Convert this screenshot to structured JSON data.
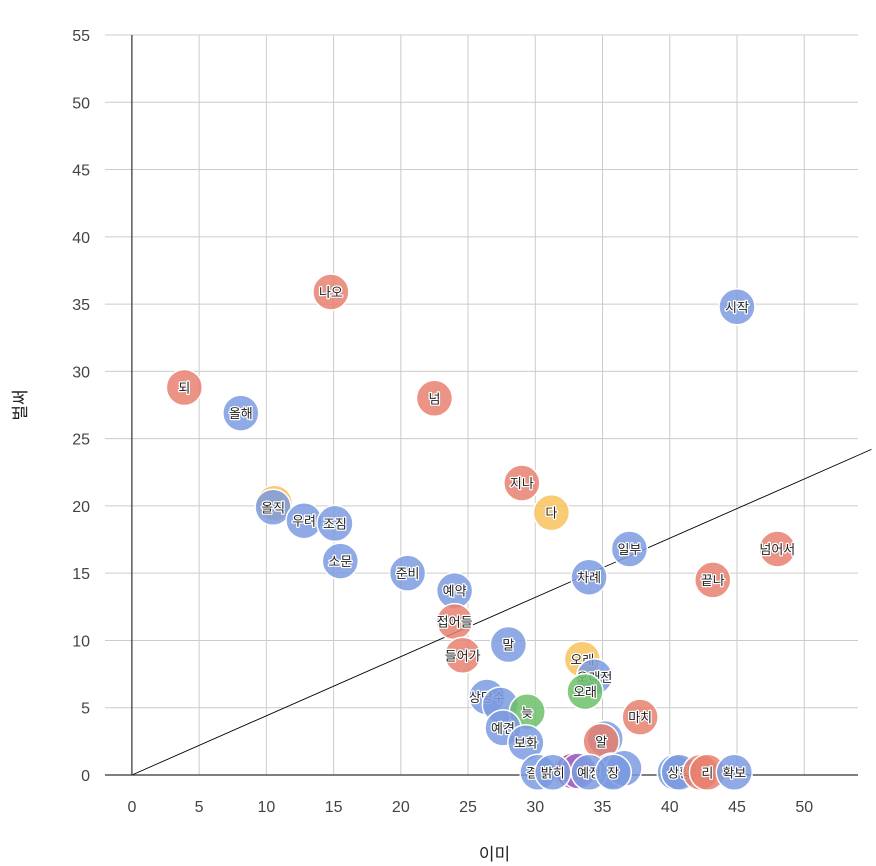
{
  "chart_data": {
    "type": "scatter",
    "title": "",
    "xlabel": "이미",
    "ylabel": "벌써",
    "xlim": [
      -2,
      54
    ],
    "ylim": [
      0,
      55
    ],
    "xticks": [
      0,
      5,
      10,
      15,
      20,
      25,
      30,
      35,
      40,
      45,
      50
    ],
    "yticks": [
      0,
      5,
      10,
      15,
      20,
      25,
      30,
      35,
      40,
      45,
      50,
      55
    ],
    "grid": true,
    "reference_line": {
      "from": [
        0,
        0
      ],
      "to": [
        55,
        24.2
      ]
    },
    "colors": {
      "blue": "#7b9be0",
      "red": "#e8806e",
      "yellow": "#f7c25c",
      "green": "#6dbf6a",
      "purple": "#9b6fcf",
      "magenta": "#c9507e"
    },
    "points": [
      {
        "label": "시작",
        "x": 45.0,
        "y": 34.8,
        "color": "blue"
      },
      {
        "label": "나오",
        "x": 14.8,
        "y": 35.9,
        "color": "red"
      },
      {
        "label": "되",
        "x": 3.9,
        "y": 28.8,
        "color": "red"
      },
      {
        "label": "넘",
        "x": 22.5,
        "y": 28.0,
        "color": "red"
      },
      {
        "label": "올해",
        "x": 8.1,
        "y": 26.9,
        "color": "blue"
      },
      {
        "label": "지나",
        "x": 29.0,
        "y": 21.7,
        "color": "red"
      },
      {
        "label": "다",
        "x": 31.2,
        "y": 19.5,
        "color": "yellow"
      },
      {
        "label": "",
        "x": 10.6,
        "y": 20.2,
        "color": "yellow"
      },
      {
        "label": "올직",
        "x": 10.5,
        "y": 19.9,
        "color": "blue"
      },
      {
        "label": "우려",
        "x": 12.8,
        "y": 18.9,
        "color": "blue"
      },
      {
        "label": "조짐",
        "x": 15.1,
        "y": 18.7,
        "color": "blue"
      },
      {
        "label": "일부",
        "x": 37.0,
        "y": 16.8,
        "color": "blue"
      },
      {
        "label": "넘어서",
        "x": 48.0,
        "y": 16.8,
        "color": "red"
      },
      {
        "label": "소문",
        "x": 15.5,
        "y": 15.9,
        "color": "blue"
      },
      {
        "label": "준비",
        "x": 20.5,
        "y": 15.0,
        "color": "blue"
      },
      {
        "label": "차례",
        "x": 34.0,
        "y": 14.7,
        "color": "blue"
      },
      {
        "label": "끝나",
        "x": 43.2,
        "y": 14.5,
        "color": "red"
      },
      {
        "label": "예약",
        "x": 24.0,
        "y": 13.7,
        "color": "blue"
      },
      {
        "label": "접어들",
        "x": 24.0,
        "y": 11.4,
        "color": "red"
      },
      {
        "label": "말",
        "x": 28.0,
        "y": 9.7,
        "color": "blue"
      },
      {
        "label": "들어가",
        "x": 24.6,
        "y": 8.9,
        "color": "red"
      },
      {
        "label": "오래",
        "x": 33.5,
        "y": 8.6,
        "color": "yellow"
      },
      {
        "label": "오래전",
        "x": 34.4,
        "y": 7.3,
        "color": "blue"
      },
      {
        "label": "오래",
        "x": 33.7,
        "y": 6.2,
        "color": "green"
      },
      {
        "label": "상당수",
        "x": 26.4,
        "y": 5.8,
        "color": "blue"
      },
      {
        "label": "",
        "x": 27.4,
        "y": 5.2,
        "color": "blue"
      },
      {
        "label": "늦",
        "x": 29.4,
        "y": 4.7,
        "color": "green"
      },
      {
        "label": "마치",
        "x": 37.8,
        "y": 4.3,
        "color": "red"
      },
      {
        "label": "예견",
        "x": 27.6,
        "y": 3.5,
        "color": "blue"
      },
      {
        "label": "보화",
        "x": 29.3,
        "y": 2.4,
        "color": "blue"
      },
      {
        "label": "",
        "x": 35.2,
        "y": 2.7,
        "color": "blue"
      },
      {
        "label": "알",
        "x": 34.9,
        "y": 2.5,
        "color": "red"
      },
      {
        "label": "",
        "x": 32.6,
        "y": 0.3,
        "color": "red"
      },
      {
        "label": "",
        "x": 32.8,
        "y": 0.3,
        "color": "magenta"
      },
      {
        "label": "",
        "x": 33.2,
        "y": 0.3,
        "color": "purple"
      },
      {
        "label": "",
        "x": 35.7,
        "y": 0.3,
        "color": "blue"
      },
      {
        "label": "",
        "x": 36.6,
        "y": 0.5,
        "color": "blue"
      },
      {
        "label": "결정",
        "x": 30.2,
        "y": 0.2,
        "color": "blue"
      },
      {
        "label": "밝히",
        "x": 31.3,
        "y": 0.2,
        "color": "blue"
      },
      {
        "label": "예정",
        "x": 34.0,
        "y": 0.2,
        "color": "blue"
      },
      {
        "label": "장",
        "x": 35.8,
        "y": 0.2,
        "color": "blue"
      },
      {
        "label": "",
        "x": 40.4,
        "y": 0.2,
        "color": "blue"
      },
      {
        "label": "상황",
        "x": 40.7,
        "y": 0.2,
        "color": "blue"
      },
      {
        "label": "",
        "x": 42.3,
        "y": 0.2,
        "color": "red"
      },
      {
        "label": "리",
        "x": 42.8,
        "y": 0.2,
        "color": "red"
      },
      {
        "label": "확보",
        "x": 44.8,
        "y": 0.2,
        "color": "blue"
      }
    ]
  }
}
